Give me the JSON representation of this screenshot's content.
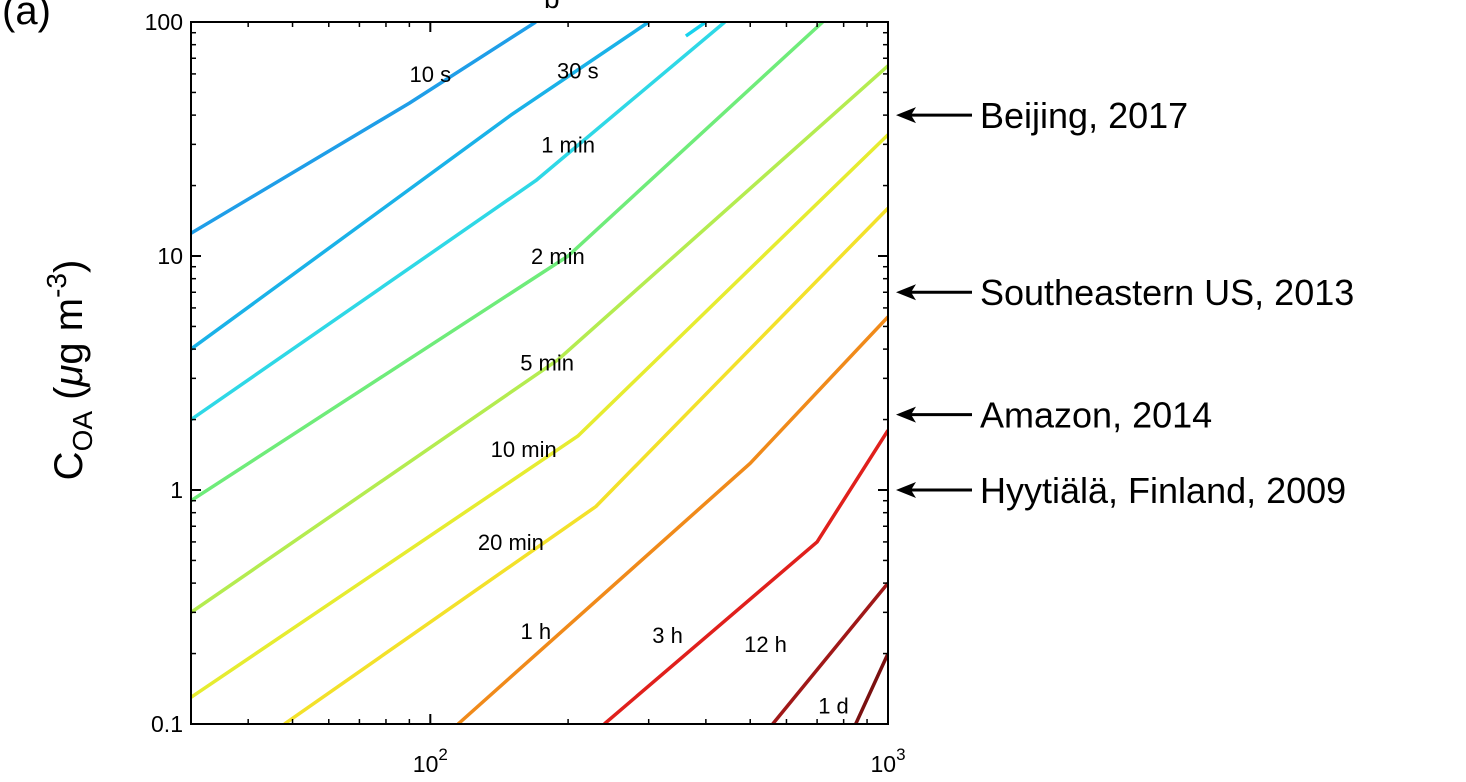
{
  "chart_data": {
    "type": "line",
    "panel_label": "(a)",
    "top_label_fragment": "b",
    "x_scale": "log",
    "y_scale": "log",
    "xlim": [
      30,
      1000
    ],
    "ylim": [
      0.1,
      100
    ],
    "ylabel": {
      "main": "C",
      "sub": "OA",
      "paren": " (",
      "mu": "μ",
      "unit": "g m",
      "sup": "-3",
      "close": ")"
    },
    "x_ticks": [
      {
        "value": 100,
        "base": "10",
        "exp": "2"
      },
      {
        "value": 1000,
        "base": "10",
        "exp": "3"
      }
    ],
    "y_ticks": [
      {
        "value": 0.1,
        "label": "0.1"
      },
      {
        "value": 1,
        "label": "1"
      },
      {
        "value": 10,
        "label": "10"
      },
      {
        "value": 100,
        "label": "100"
      }
    ],
    "series": [
      {
        "name": "10 s",
        "color": "#1f9ee8",
        "points": [
          [
            30,
            12.5
          ],
          [
            90,
            45
          ],
          [
            170,
            100
          ]
        ],
        "label_at": [
          100,
          60
        ]
      },
      {
        "name": "30 s",
        "color": "#1ab2e8",
        "points": [
          [
            30,
            4
          ],
          [
            150,
            40
          ],
          [
            300,
            100
          ]
        ],
        "label_at": [
          210,
          62
        ]
      },
      {
        "name": "",
        "color": "#17d2ee",
        "points": [
          [
            400,
            100
          ]
        ]
      },
      {
        "name": "1 min",
        "color": "#2fd8e6",
        "points": [
          [
            30,
            2
          ],
          [
            170,
            21
          ],
          [
            440,
            100
          ]
        ],
        "label_at": [
          200,
          30
        ]
      },
      {
        "name": "2 min",
        "color": "#6fec7a",
        "points": [
          [
            30,
            0.9
          ],
          [
            200,
            10
          ],
          [
            720,
            100
          ]
        ],
        "label_at": [
          190,
          10
        ]
      },
      {
        "name": "5 min",
        "color": "#b4ec50",
        "points": [
          [
            30,
            0.3
          ],
          [
            190,
            3.6
          ],
          [
            1000,
            65
          ]
        ],
        "label_at": [
          180,
          3.5
        ]
      },
      {
        "name": "10 min",
        "color": "#e6ec30",
        "points": [
          [
            30,
            0.13
          ],
          [
            210,
            1.7
          ],
          [
            1000,
            33
          ]
        ],
        "label_at": [
          160,
          1.5
        ]
      },
      {
        "name": "20 min",
        "color": "#f3e12a",
        "points": [
          [
            48,
            0.1
          ],
          [
            230,
            0.85
          ],
          [
            1000,
            16
          ]
        ],
        "label_at": [
          150,
          0.6
        ]
      },
      {
        "name": "1 h",
        "color": "#f08a1a",
        "points": [
          [
            115,
            0.1
          ],
          [
            500,
            1.3
          ],
          [
            1000,
            5.5
          ]
        ],
        "label_at": [
          170,
          0.25
        ]
      },
      {
        "name": "3 h",
        "color": "#e0201c",
        "points": [
          [
            240,
            0.1
          ],
          [
            700,
            0.6
          ],
          [
            1000,
            1.8
          ]
        ],
        "label_at": [
          330,
          0.24
        ]
      },
      {
        "name": "12 h",
        "color": "#a01818",
        "points": [
          [
            560,
            0.1
          ],
          [
            1000,
            0.4
          ]
        ],
        "label_at": [
          540,
          0.22
        ]
      },
      {
        "name": "1 d",
        "color": "#7a1010",
        "points": [
          [
            850,
            0.1
          ],
          [
            1000,
            0.2
          ]
        ],
        "label_at": [
          760,
          0.12
        ]
      }
    ],
    "annotations": [
      {
        "label": "Beijing, 2017",
        "y": 40
      },
      {
        "label": "Southeastern US, 2013",
        "y": 7
      },
      {
        "label": "Amazon, 2014",
        "y": 2.1
      },
      {
        "label": "Hyytiälä, Finland, 2009",
        "y": 1
      }
    ]
  }
}
